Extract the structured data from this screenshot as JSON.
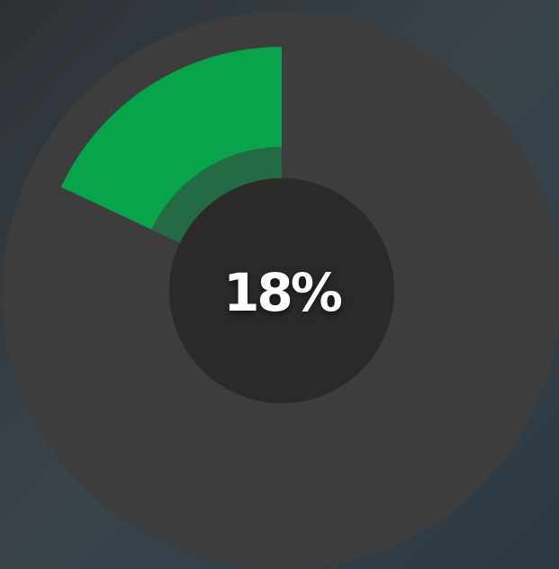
{
  "chart_data": {
    "type": "donut",
    "values": [
      18
    ],
    "value_labels": [
      "18%"
    ],
    "color": "#08a34a"
  }
}
